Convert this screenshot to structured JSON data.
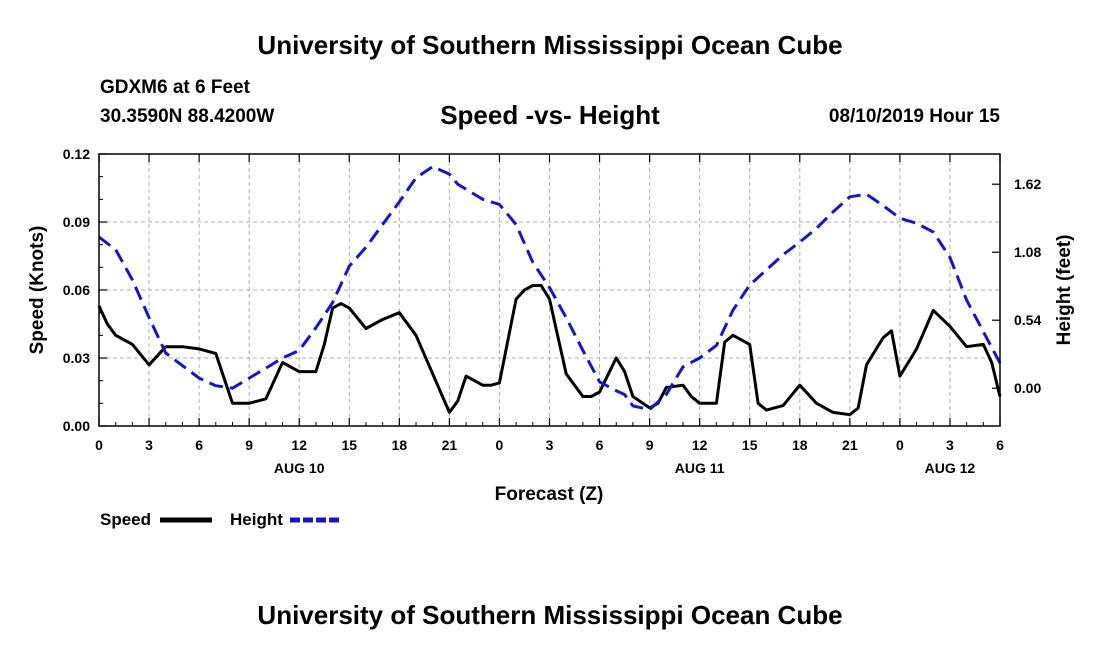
{
  "header": {
    "title": "University of Southern Mississippi Ocean Cube",
    "station": "GDXM6 at 6 Feet",
    "coords": "30.3590N 88.4200W",
    "datetime": "08/10/2019 Hour 15"
  },
  "footer": {
    "title": "University of Southern Mississippi Ocean Cube"
  },
  "chart_data": {
    "type": "line",
    "title": "Speed -vs- Height",
    "xlabel": "Forecast (Z)",
    "ylabel_left": "Speed (Knots)",
    "ylabel_right": "Height (feet)",
    "x_ticks": [
      "0",
      "3",
      "6",
      "9",
      "12",
      "15",
      "18",
      "21",
      "0",
      "3",
      "6",
      "9",
      "12",
      "15",
      "18",
      "21",
      "0",
      "3",
      "6"
    ],
    "date_labels": [
      {
        "label": "AUG 10",
        "hour_index": 12
      },
      {
        "label": "AUG 11",
        "hour_index": 36
      },
      {
        "label": "AUG 12",
        "hour_index": 51
      }
    ],
    "xlim": [
      0,
      54
    ],
    "ylim_left": [
      0,
      0.12
    ],
    "yticks_left": [
      "0.00",
      "0.03",
      "0.06",
      "0.09",
      "0.12"
    ],
    "ylim_right": [
      -0.3,
      1.86
    ],
    "yticks_right": [
      "0.00",
      "0.54",
      "1.08",
      "1.62"
    ],
    "grid": true,
    "legend_position": "bottom-left",
    "series": [
      {
        "name": "Speed",
        "color": "#000000",
        "axis": "left",
        "dash": "solid",
        "x": [
          0,
          0.5,
          1,
          2,
          3,
          4,
          5,
          6,
          7,
          8,
          9,
          10,
          11,
          12,
          13,
          13.5,
          14,
          14.5,
          15,
          16,
          17,
          18,
          19,
          20,
          21,
          21.5,
          22,
          23,
          23.5,
          24,
          25,
          25.5,
          26,
          26.5,
          27,
          28,
          29,
          29.5,
          30,
          31,
          31.5,
          32,
          33,
          33.5,
          34,
          35,
          35.5,
          36,
          37,
          37.5,
          38,
          39,
          39.5,
          40,
          41,
          42,
          43,
          44,
          45,
          45.5,
          46,
          47,
          47.5,
          48,
          49,
          50,
          51,
          52,
          53,
          53.5,
          54
        ],
        "values": [
          0.053,
          0.045,
          0.04,
          0.036,
          0.027,
          0.035,
          0.035,
          0.034,
          0.032,
          0.01,
          0.01,
          0.012,
          0.028,
          0.024,
          0.024,
          0.036,
          0.052,
          0.054,
          0.052,
          0.043,
          0.047,
          0.05,
          0.04,
          0.023,
          0.006,
          0.011,
          0.022,
          0.018,
          0.018,
          0.019,
          0.056,
          0.06,
          0.062,
          0.062,
          0.056,
          0.023,
          0.013,
          0.013,
          0.015,
          0.03,
          0.024,
          0.013,
          0.008,
          0.01,
          0.017,
          0.018,
          0.013,
          0.01,
          0.01,
          0.037,
          0.04,
          0.036,
          0.01,
          0.007,
          0.009,
          0.018,
          0.01,
          0.006,
          0.005,
          0.008,
          0.027,
          0.039,
          0.042,
          0.022,
          0.034,
          0.051,
          0.044,
          0.035,
          0.036,
          0.028,
          0.013
        ]
      },
      {
        "name": "Height",
        "color": "#1515cc",
        "axis": "right",
        "dash": "dashed",
        "x": [
          0,
          1,
          2,
          3,
          4,
          5,
          6,
          7,
          8,
          9,
          10,
          11,
          12,
          13,
          14,
          15,
          16,
          17,
          18,
          19,
          20,
          21,
          21.5,
          22,
          23,
          24,
          25,
          26,
          27,
          28,
          29,
          30,
          31,
          31.5,
          32,
          33,
          34,
          35,
          36,
          37,
          38,
          39,
          40,
          41,
          42,
          43,
          44,
          45,
          46,
          47,
          48,
          49,
          50,
          51,
          52,
          53,
          54
        ],
        "values": [
          1.2,
          1.1,
          0.86,
          0.56,
          0.28,
          0.18,
          0.08,
          0.02,
          0.0,
          0.08,
          0.16,
          0.24,
          0.3,
          0.48,
          0.68,
          0.97,
          1.12,
          1.3,
          1.48,
          1.67,
          1.76,
          1.7,
          1.62,
          1.58,
          1.5,
          1.46,
          1.3,
          1.0,
          0.8,
          0.56,
          0.3,
          0.05,
          -0.02,
          -0.05,
          -0.14,
          -0.17,
          -0.05,
          0.17,
          0.24,
          0.34,
          0.62,
          0.82,
          0.94,
          1.06,
          1.16,
          1.27,
          1.4,
          1.52,
          1.54,
          1.45,
          1.35,
          1.31,
          1.24,
          1.04,
          0.7,
          0.45,
          0.2
        ]
      }
    ]
  }
}
